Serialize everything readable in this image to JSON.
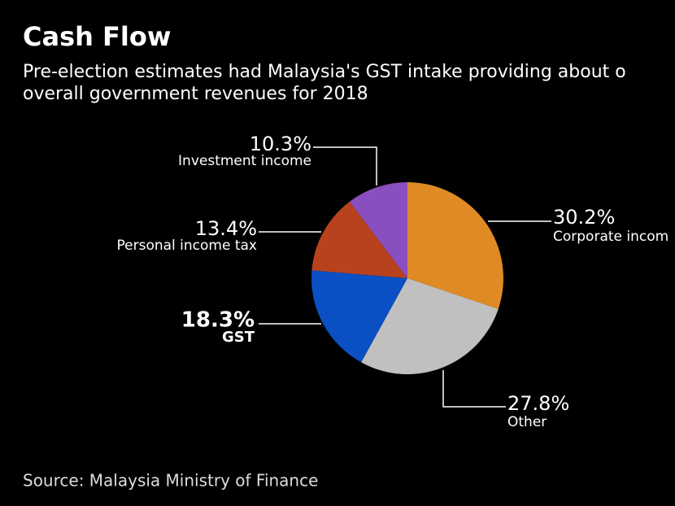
{
  "chart_data": {
    "type": "pie",
    "title": "Cash Flow",
    "subtitle": [
      "Pre-election estimates had Malaysia's GST intake providing about o",
      "overall government revenues for 2018"
    ],
    "source": "Source: Malaysia Ministry of Finance",
    "categories": [
      "Corporate incom",
      "Other",
      "GST",
      "Personal income tax",
      "Investment income"
    ],
    "values": [
      30.2,
      27.8,
      18.3,
      13.4,
      10.3
    ],
    "value_labels": [
      "30.2%",
      "27.8%",
      "18.3%",
      "13.4%",
      "10.3%"
    ],
    "colors": [
      "#e08a26",
      "#c0c0c0",
      "#0a4fc4",
      "#b8421d",
      "#8a4fbf"
    ]
  }
}
